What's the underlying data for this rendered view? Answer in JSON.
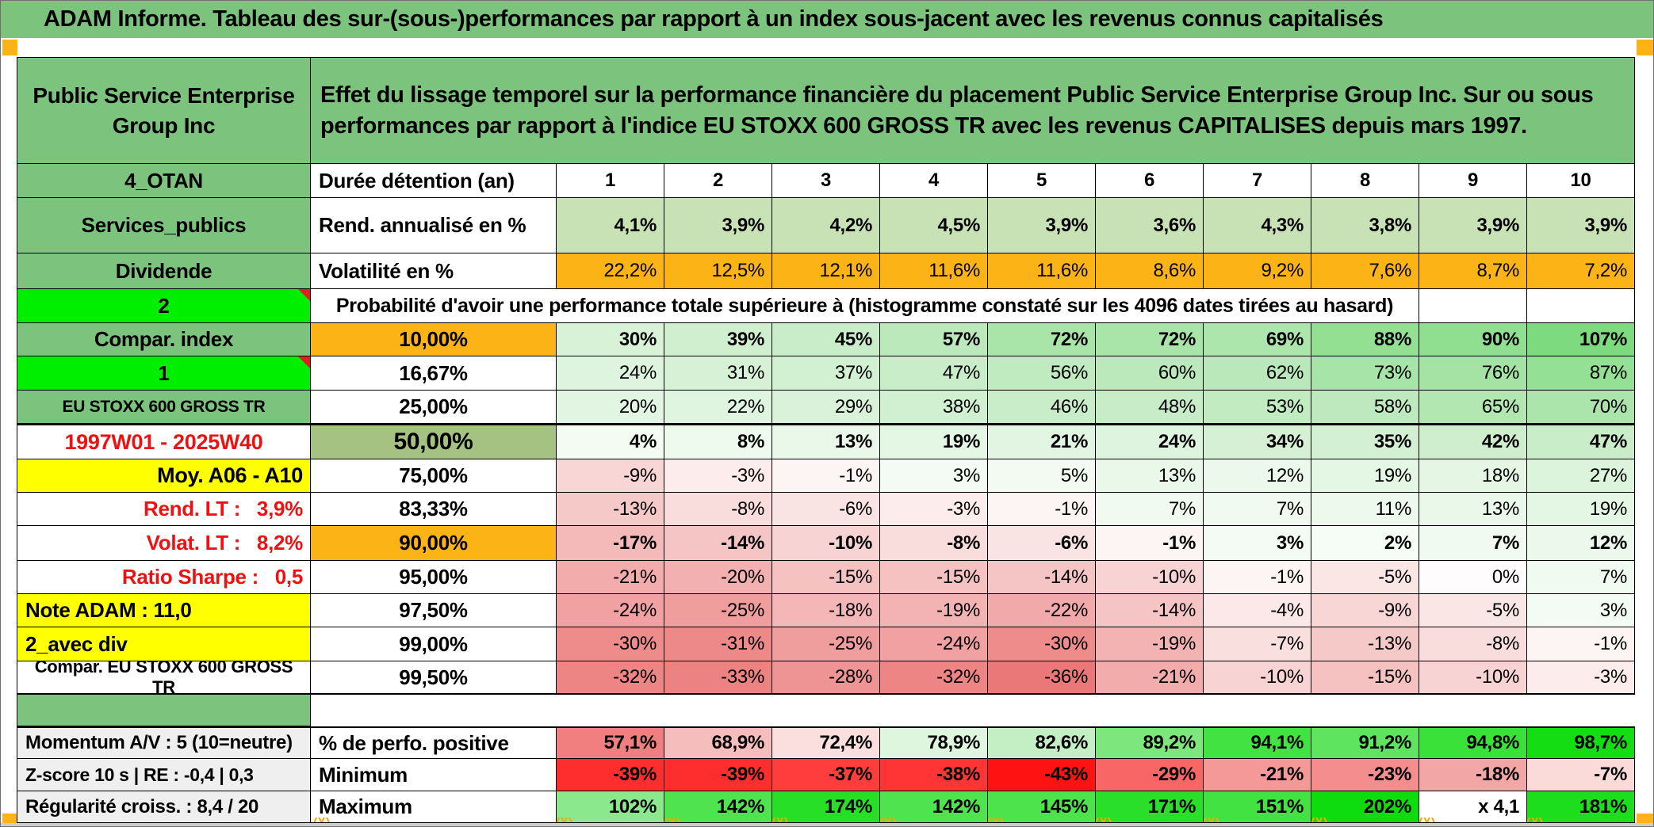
{
  "window": {
    "title": "ADAM Informe. Tableau des sur-(sous-)performances par rapport à un index sous-jacent avec les revenus connus capitalisés"
  },
  "header": {
    "company": "Public Service Enterprise Group Inc",
    "description": "Effet du lissage temporel sur la performance financière du placement Public Service Enterprise Group Inc. Sur ou sous performances par rapport à l'indice EU STOXX 600 GROSS TR avec les revenus CAPITALISES depuis mars 1997."
  },
  "colors": {
    "title_green": "#7cc47e",
    "band_orange": "#fcb316",
    "bright_green": "#00ee00",
    "label_yellow": "#ffff00",
    "sage_green": "#a6c282",
    "grey_label": "#efefef",
    "red_text": "#ee1111"
  },
  "decor": {
    "marker": "^"
  },
  "table": {
    "rows": [
      {
        "kind": "data",
        "a": {
          "text": "4_OTAN",
          "bg": "#7cc47e"
        },
        "b": {
          "text": "Durée détention (an)",
          "bg": "#ffffff"
        },
        "values": [
          "1",
          "2",
          "3",
          "4",
          "5",
          "6",
          "7",
          "8",
          "9",
          "10"
        ],
        "value_colors": [
          "#ffffff",
          "#ffffff",
          "#ffffff",
          "#ffffff",
          "#ffffff",
          "#ffffff",
          "#ffffff",
          "#ffffff",
          "#ffffff",
          "#ffffff"
        ]
      },
      {
        "kind": "data",
        "a": {
          "text": "Services_publics",
          "bg": "#7cc47e"
        },
        "b": {
          "text": "Rend. annualisé en %",
          "bg": "#ffffff"
        },
        "values": [
          "4,1%",
          "3,9%",
          "4,2%",
          "4,5%",
          "3,9%",
          "3,6%",
          "4,3%",
          "3,8%",
          "3,9%",
          "3,9%"
        ],
        "value_colors": [
          "#c9e2b5",
          "#c9e2b5",
          "#c9e2b5",
          "#c9e2b5",
          "#c9e2b5",
          "#c9e2b5",
          "#c9e2b5",
          "#c9e2b5",
          "#c9e2b5",
          "#c9e2b5"
        ]
      },
      {
        "kind": "data",
        "a": {
          "text": "Dividende",
          "bg": "#7cc47e"
        },
        "b": {
          "text": "Volatilité en %",
          "bg": "#ffffff"
        },
        "values": [
          "22,2%",
          "12,5%",
          "12,1%",
          "11,6%",
          "11,6%",
          "8,6%",
          "9,2%",
          "7,6%",
          "8,7%",
          "7,2%"
        ],
        "value_colors": [
          "#fcb316",
          "#fcb316",
          "#fcb316",
          "#fcb316",
          "#fcb316",
          "#fcb316",
          "#fcb316",
          "#fcb316",
          "#fcb316",
          "#fcb316"
        ]
      },
      {
        "kind": "prob-header",
        "a": {
          "text": "2",
          "bg": "#00ee00",
          "note_marker": true
        },
        "span_text": "Probabilité d'avoir une performance totale supérieure à (histogramme constaté sur les 4096 dates tirées au hasard)"
      },
      {
        "kind": "data",
        "a": {
          "text": "Compar. index",
          "bg": "#7cc47e"
        },
        "b": {
          "text": "10,00%",
          "bg": "#fcb316"
        },
        "values": [
          "30%",
          "39%",
          "45%",
          "57%",
          "72%",
          "72%",
          "69%",
          "88%",
          "90%",
          "107%"
        ],
        "value_colors": [
          "#d8f2d8",
          "#cfefcf",
          "#c9edc9",
          "#bce9bc",
          "#a9e5a9",
          "#a9e5a9",
          "#ace6ac",
          "#93e093",
          "#90df90",
          "#7eda7e"
        ]
      },
      {
        "kind": "data",
        "a": {
          "text": "1",
          "bg": "#00ee00",
          "note_marker": true
        },
        "b": {
          "text": "16,67%",
          "bg": "#ffffff"
        },
        "values": [
          "24%",
          "31%",
          "37%",
          "47%",
          "56%",
          "60%",
          "62%",
          "73%",
          "76%",
          "87%"
        ],
        "value_colors": [
          "#def4de",
          "#d7f1d7",
          "#d2f0d2",
          "#c9edc9",
          "#c0eac0",
          "#bce9bc",
          "#bae8ba",
          "#a7e4a7",
          "#a4e3a4",
          "#94e094"
        ]
      },
      {
        "kind": "data",
        "a": {
          "text": "EU STOXX 600 GROSS TR",
          "bg": "#7cc47e"
        },
        "b": {
          "text": "25,00%",
          "bg": "#ffffff"
        },
        "values": [
          "20%",
          "22%",
          "29%",
          "38%",
          "46%",
          "48%",
          "53%",
          "58%",
          "65%",
          "70%"
        ],
        "value_colors": [
          "#e2f5e2",
          "#e0f5e0",
          "#d9f2d9",
          "#d1efd1",
          "#c9edc9",
          "#c7ecc7",
          "#c2ebc2",
          "#bee9be",
          "#b2e7b2",
          "#ace5ac"
        ]
      },
      {
        "kind": "data",
        "a": {
          "text": "1997W01 - 2025W40",
          "bg": "#ffffff",
          "color": "#ee1111"
        },
        "b": {
          "text": "50,00%",
          "bg": "#a6c282"
        },
        "values": [
          "4%",
          "8%",
          "13%",
          "19%",
          "21%",
          "24%",
          "34%",
          "35%",
          "42%",
          "47%"
        ],
        "value_colors": [
          "#f3fbf3",
          "#effaef",
          "#eaf8ea",
          "#e4f6e4",
          "#e2f5e2",
          "#def4de",
          "#d5f0d5",
          "#d4f0d4",
          "#ceeece",
          "#c9edc9"
        ]
      },
      {
        "kind": "data",
        "a": {
          "text": "Moy. A06 - A10",
          "bg": "#ffff00"
        },
        "b": {
          "text": "75,00%",
          "bg": "#ffffff"
        },
        "values": [
          "-9%",
          "-3%",
          "-1%",
          "3%",
          "5%",
          "13%",
          "12%",
          "19%",
          "18%",
          "27%"
        ],
        "value_colors": [
          "#f8d6d6",
          "#fcecec",
          "#fdf4f4",
          "#f4fbf4",
          "#f2faf2",
          "#eaf8ea",
          "#ebf8eb",
          "#e4f6e4",
          "#e5f6e5",
          "#dcf3dc"
        ]
      },
      {
        "kind": "data",
        "a": {
          "text": "Rend. LT :   3,9%",
          "bg": "#ffffff",
          "color": "#ee1111"
        },
        "b": {
          "text": "83,33%",
          "bg": "#ffffff"
        },
        "values": [
          "-13%",
          "-8%",
          "-6%",
          "-3%",
          "-1%",
          "7%",
          "7%",
          "11%",
          "13%",
          "19%"
        ],
        "value_colors": [
          "#f6c9c9",
          "#f9dcdc",
          "#fae3e3",
          "#fcecec",
          "#fdf4f4",
          "#f0faf0",
          "#f0faf0",
          "#edf9ed",
          "#eaf8ea",
          "#e4f6e4"
        ]
      },
      {
        "kind": "data",
        "a": {
          "text": "Volat. LT :   8,2%",
          "bg": "#ffffff",
          "color": "#ee1111"
        },
        "b": {
          "text": "90,00%",
          "bg": "#fcb316"
        },
        "values": [
          "-17%",
          "-14%",
          "-10%",
          "-8%",
          "-6%",
          "-1%",
          "3%",
          "2%",
          "7%",
          "12%"
        ],
        "value_colors": [
          "#f4baba",
          "#f5c5c5",
          "#f8d3d3",
          "#f9dcdc",
          "#fae3e3",
          "#fdf4f4",
          "#f4fbf4",
          "#f6fcf6",
          "#f0faf0",
          "#ebf8eb"
        ]
      },
      {
        "kind": "data",
        "a": {
          "text": "Ratio Sharpe :   0,5",
          "bg": "#ffffff",
          "color": "#ee1111"
        },
        "b": {
          "text": "95,00%",
          "bg": "#ffffff"
        },
        "values": [
          "-21%",
          "-20%",
          "-15%",
          "-15%",
          "-14%",
          "-10%",
          "-1%",
          "-5%",
          "0%",
          "7%"
        ],
        "value_colors": [
          "#f2acac",
          "#f3b0b0",
          "#f5c1c1",
          "#f5c1c1",
          "#f5c5c5",
          "#f8d3d3",
          "#fdf4f4",
          "#fbe6e6",
          "#fefcfc",
          "#f0faf0"
        ]
      },
      {
        "kind": "data",
        "a": {
          "text": "Note ADAM : 11,0",
          "bg": "#ffff00"
        },
        "b": {
          "text": "97,50%",
          "bg": "#ffffff"
        },
        "values": [
          "-24%",
          "-25%",
          "-18%",
          "-19%",
          "-22%",
          "-14%",
          "-4%",
          "-9%",
          "-5%",
          "3%"
        ],
        "value_colors": [
          "#f1a1a1",
          "#f09d9d",
          "#f4b6b6",
          "#f3b3b3",
          "#f2a9a9",
          "#f5c5c5",
          "#fce8e8",
          "#f8d6d6",
          "#fbe6e6",
          "#f4fbf4"
        ]
      },
      {
        "kind": "data",
        "a": {
          "text": "2_avec div",
          "bg": "#ffff00"
        },
        "b": {
          "text": "99,00%",
          "bg": "#ffffff"
        },
        "values": [
          "-30%",
          "-31%",
          "-25%",
          "-24%",
          "-30%",
          "-19%",
          "-7%",
          "-13%",
          "-8%",
          "-1%"
        ],
        "value_colors": [
          "#ee8c8c",
          "#ee8989",
          "#f09d9d",
          "#f1a1a1",
          "#ee8c8c",
          "#f3b3b3",
          "#fadfdf",
          "#f6c9c9",
          "#f9dcdc",
          "#fdf4f4"
        ]
      },
      {
        "kind": "data",
        "a": {
          "text": "Compar. EU STOXX 600 GROSS TR",
          "bg": "#ffffff"
        },
        "b": {
          "text": "99,50%",
          "bg": "#ffffff"
        },
        "values": [
          "-32%",
          "-33%",
          "-28%",
          "-32%",
          "-36%",
          "-21%",
          "-10%",
          "-15%",
          "-10%",
          "-3%"
        ],
        "value_colors": [
          "#ed8585",
          "#ed8282",
          "#ef9494",
          "#ed8585",
          "#eb7878",
          "#f2acac",
          "#f8d3d3",
          "#f5c1c1",
          "#f8d3d3",
          "#fcecec"
        ]
      },
      {
        "kind": "separator",
        "a": {
          "text": "",
          "bg": "#7cc47e"
        }
      },
      {
        "kind": "data",
        "a": {
          "text": "Momentum A/V : 5 (10=neutre)",
          "bg": "#efefef"
        },
        "b": {
          "text": "% de perfo. positive",
          "bg": "#ffffff"
        },
        "values": [
          "57,1%",
          "68,9%",
          "72,4%",
          "78,9%",
          "82,6%",
          "89,2%",
          "94,1%",
          "91,2%",
          "94,8%",
          "98,7%"
        ],
        "value_colors": [
          "#f17f7f",
          "#f6bdbd",
          "#fbdfdf",
          "#def5de",
          "#c4efc4",
          "#7de77d",
          "#41e241",
          "#5ee45e",
          "#39e139",
          "#14dd14"
        ]
      },
      {
        "kind": "data",
        "a": {
          "text": "Z-score 10 s | RE : -0,4 | 0,3",
          "bg": "#efefef"
        },
        "b": {
          "text": "Minimum",
          "bg": "#ffffff"
        },
        "values": [
          "-39%",
          "-39%",
          "-37%",
          "-38%",
          "-43%",
          "-29%",
          "-21%",
          "-23%",
          "-18%",
          "-7%"
        ],
        "value_colors": [
          "#ff2e2e",
          "#ff2e2e",
          "#ff3d3d",
          "#ff3535",
          "#ff1212",
          "#f96666",
          "#f49898",
          "#f48e8e",
          "#f2a6a6",
          "#fbdada"
        ]
      },
      {
        "kind": "data",
        "a": {
          "text": "Régularité croiss. : 8,4 / 20",
          "bg": "#efefef"
        },
        "b": {
          "text": "Maximum",
          "bg": "#ffffff"
        },
        "values": [
          "102%",
          "142%",
          "174%",
          "142%",
          "145%",
          "171%",
          "151%",
          "202%",
          "x 4,1",
          "181%"
        ],
        "value_colors": [
          "#8ce88c",
          "#4fe34f",
          "#27df27",
          "#4fe34f",
          "#4ce34c",
          "#2adf2a",
          "#43e243",
          "#0fdc0f",
          "#ffffff",
          "#1dde1d"
        ]
      }
    ]
  }
}
